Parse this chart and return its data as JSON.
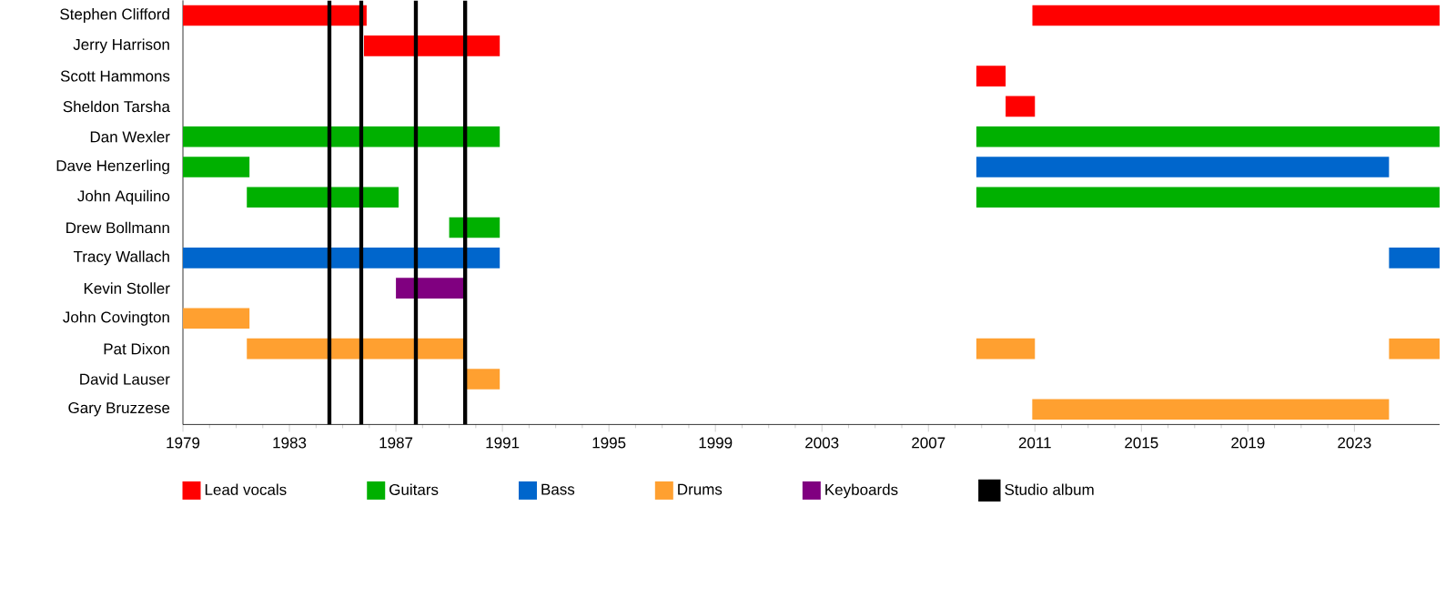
{
  "chart_data": {
    "type": "bar",
    "orientation": "horizontal",
    "categories": [
      "Stephen Clifford",
      "Jerry Harrison",
      "Scott Hammons",
      "Sheldon Tarsha",
      "Dan Wexler",
      "Dave Henzerling",
      "John Aquilino",
      "Drew Bollmann",
      "Tracy Wallach",
      "Kevin Stoller",
      "John Covington",
      "Pat Dixon",
      "David Lauser",
      "Gary Bruzzese"
    ],
    "series": [
      {
        "name": "Lead vocals",
        "color": "#ff0000",
        "base": [
          1979,
          1985.8,
          2008.8,
          2009.9,
          null,
          null,
          null,
          null,
          null,
          null,
          null,
          null,
          null,
          null
        ],
        "values": [
          6.9,
          5.1,
          1.1,
          1.1,
          null,
          null,
          null,
          null,
          null,
          null,
          null,
          null,
          null,
          null
        ]
      },
      {
        "color": "#ff0000",
        "base": [
          2010.9,
          null,
          null,
          null,
          null,
          null,
          null,
          null,
          null,
          null,
          null,
          null,
          null,
          null
        ],
        "values": [
          15.3,
          null,
          null,
          null,
          null,
          null,
          null,
          null,
          null,
          null,
          null,
          null,
          null,
          null
        ]
      },
      {
        "name": "Guitars",
        "color": "#00b000",
        "base": [
          null,
          null,
          null,
          null,
          1979,
          1979,
          1981.4,
          1989.0,
          null,
          null,
          null,
          null,
          null,
          null
        ],
        "values": [
          null,
          null,
          null,
          null,
          11.9,
          2.5,
          5.7,
          1.9,
          null,
          null,
          null,
          null,
          null,
          null
        ]
      },
      {
        "color": "#00b000",
        "base": [
          null,
          null,
          null,
          null,
          2008.8,
          null,
          2008.8,
          null,
          null,
          null,
          null,
          null,
          null,
          null
        ],
        "values": [
          null,
          null,
          null,
          null,
          17.4,
          null,
          17.4,
          null,
          null,
          null,
          null,
          null,
          null,
          null
        ]
      },
      {
        "name": "Bass",
        "color": "#0066cc",
        "base": [
          null,
          null,
          null,
          null,
          null,
          2008.8,
          null,
          null,
          1979,
          null,
          null,
          null,
          null,
          null
        ],
        "values": [
          null,
          null,
          null,
          null,
          null,
          15.5,
          null,
          null,
          11.9,
          null,
          null,
          null,
          null,
          null
        ]
      },
      {
        "color": "#0066cc",
        "base": [
          null,
          null,
          null,
          null,
          null,
          null,
          null,
          null,
          2024.3,
          null,
          null,
          null,
          null,
          null
        ],
        "values": [
          null,
          null,
          null,
          null,
          null,
          null,
          null,
          null,
          1.9,
          null,
          null,
          null,
          null,
          null
        ]
      },
      {
        "name": "Drums",
        "color": "#ffa030",
        "base": [
          null,
          null,
          null,
          null,
          null,
          null,
          null,
          null,
          null,
          null,
          1979,
          1981.4,
          1989.6,
          2010.9
        ],
        "values": [
          null,
          null,
          null,
          null,
          null,
          null,
          null,
          null,
          null,
          null,
          2.5,
          8.2,
          1.3,
          13.4
        ]
      },
      {
        "color": "#ffa030",
        "base": [
          null,
          null,
          null,
          null,
          null,
          null,
          null,
          null,
          null,
          null,
          null,
          2008.8,
          null,
          null
        ],
        "values": [
          null,
          null,
          null,
          null,
          null,
          null,
          null,
          null,
          null,
          null,
          null,
          2.2,
          null,
          null
        ]
      },
      {
        "color": "#ffa030",
        "base": [
          null,
          null,
          null,
          null,
          null,
          null,
          null,
          null,
          null,
          null,
          null,
          2024.3,
          null,
          null
        ],
        "values": [
          null,
          null,
          null,
          null,
          null,
          null,
          null,
          null,
          null,
          null,
          null,
          1.9,
          null,
          null
        ]
      },
      {
        "name": "Keyboards",
        "color": "#800080",
        "base": [
          null,
          null,
          null,
          null,
          null,
          null,
          null,
          null,
          null,
          1987.0,
          null,
          null,
          null,
          null
        ],
        "values": [
          null,
          null,
          null,
          null,
          null,
          null,
          null,
          null,
          null,
          2.6,
          null,
          null,
          null,
          null
        ]
      }
    ],
    "ref_lines": [
      {
        "axis": "x",
        "value": 1984.5,
        "label": "Studio album",
        "color": "#000000"
      },
      {
        "axis": "x",
        "value": 1985.7,
        "color": "#000000"
      },
      {
        "axis": "x",
        "value": 1987.75,
        "color": "#000000"
      },
      {
        "axis": "x",
        "value": 1989.6,
        "color": "#000000"
      }
    ],
    "xlim": [
      1979,
      2026.2
    ],
    "xticks": [
      1979,
      1983,
      1987,
      1991,
      1995,
      1999,
      2003,
      2007,
      2011,
      2015,
      2019,
      2023
    ],
    "legend": "bottom"
  }
}
